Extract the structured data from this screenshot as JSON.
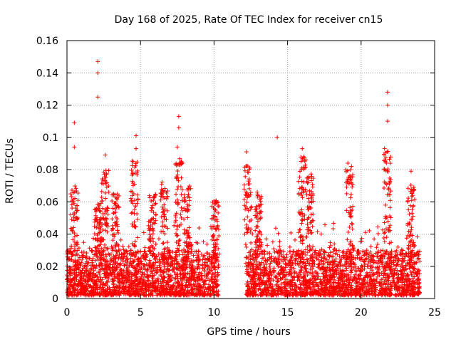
{
  "chart_data": {
    "type": "scatter",
    "title": "Day 168 of 2025, Rate Of TEC Index for receiver cn15",
    "xlabel": "GPS time / hours",
    "ylabel": "ROTI / TECUs",
    "xlim": [
      0,
      25
    ],
    "ylim": [
      0,
      0.16
    ],
    "xticks": [
      0,
      5,
      10,
      15,
      20,
      25
    ],
    "yticks": [
      0,
      0.02,
      0.04,
      0.06,
      0.08,
      0.1,
      0.12,
      0.14,
      0.16
    ],
    "xtick_labels": [
      "0",
      "5",
      "10",
      "15",
      "20",
      "25"
    ],
    "ytick_labels": [
      "0",
      "0.02",
      "0.04",
      "0.06",
      "0.08",
      "0.1",
      "0.12",
      "0.14",
      "0.16"
    ],
    "grid": true,
    "marker": "+",
    "series": [
      {
        "name": "ROTI",
        "color": "#ff0000",
        "data_gap_hours": [
          10.3,
          12.2
        ],
        "notable_peaks": [
          {
            "x": 0.5,
            "y": 0.109
          },
          {
            "x": 0.5,
            "y": 0.094
          },
          {
            "x": 2.1,
            "y": 0.147
          },
          {
            "x": 2.1,
            "y": 0.14
          },
          {
            "x": 2.1,
            "y": 0.125
          },
          {
            "x": 2.6,
            "y": 0.089
          },
          {
            "x": 4.7,
            "y": 0.101
          },
          {
            "x": 4.7,
            "y": 0.093
          },
          {
            "x": 7.6,
            "y": 0.113
          },
          {
            "x": 7.6,
            "y": 0.106
          },
          {
            "x": 7.5,
            "y": 0.094
          },
          {
            "x": 12.2,
            "y": 0.091
          },
          {
            "x": 14.3,
            "y": 0.1
          },
          {
            "x": 16.0,
            "y": 0.093
          },
          {
            "x": 19.1,
            "y": 0.084
          },
          {
            "x": 21.8,
            "y": 0.128
          },
          {
            "x": 21.8,
            "y": 0.12
          },
          {
            "x": 21.8,
            "y": 0.11
          },
          {
            "x": 23.4,
            "y": 0.079
          }
        ],
        "segments": [
          {
            "start": 0.0,
            "end": 10.3,
            "baseline_min": 0.002,
            "baseline_max": 0.03
          },
          {
            "start": 12.2,
            "end": 24.0,
            "baseline_min": 0.002,
            "baseline_max": 0.03
          }
        ],
        "activity_bursts": [
          {
            "x": 0.5,
            "peak": 0.07
          },
          {
            "x": 2.1,
            "peak": 0.06
          },
          {
            "x": 2.6,
            "peak": 0.08
          },
          {
            "x": 3.3,
            "peak": 0.065
          },
          {
            "x": 4.6,
            "peak": 0.086
          },
          {
            "x": 5.8,
            "peak": 0.066
          },
          {
            "x": 6.6,
            "peak": 0.073
          },
          {
            "x": 7.6,
            "peak": 0.088
          },
          {
            "x": 8.2,
            "peak": 0.07
          },
          {
            "x": 10.1,
            "peak": 0.062
          },
          {
            "x": 12.3,
            "peak": 0.083
          },
          {
            "x": 13.0,
            "peak": 0.068
          },
          {
            "x": 16.0,
            "peak": 0.088
          },
          {
            "x": 16.5,
            "peak": 0.078
          },
          {
            "x": 19.2,
            "peak": 0.082
          },
          {
            "x": 21.8,
            "peak": 0.095
          },
          {
            "x": 23.4,
            "peak": 0.071
          }
        ]
      }
    ]
  }
}
